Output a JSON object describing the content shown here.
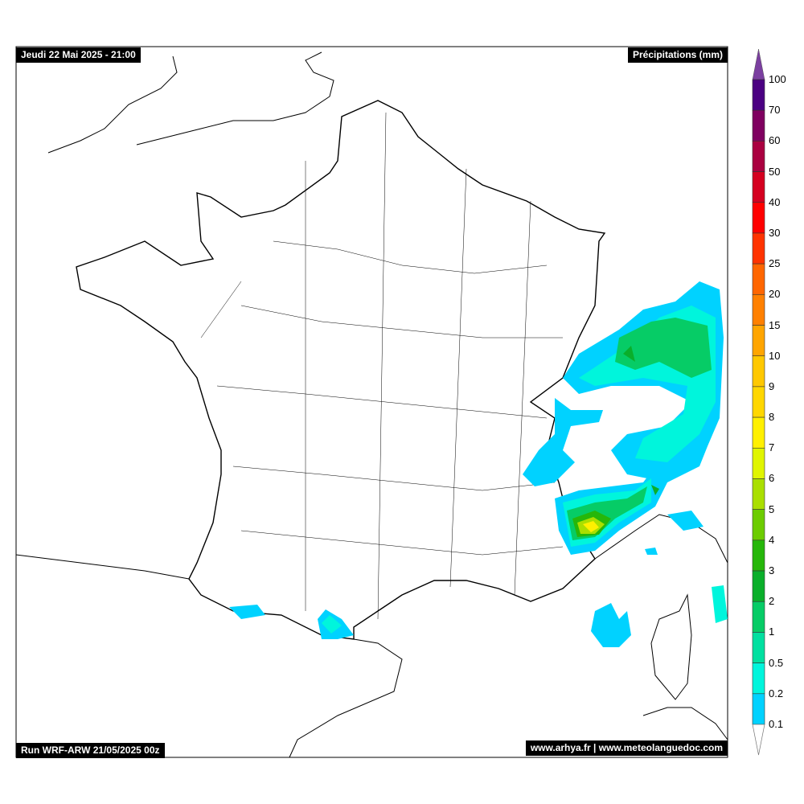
{
  "header": {
    "datetime": "Jeudi 22 Mai 2025 - 21:00",
    "variable": "Précipitations (mm)"
  },
  "footer": {
    "run": "Run WRF-ARW 21/05/2025 00z",
    "credits": "www.arhya.fr | www.meteolanguedoc.com"
  },
  "legend": {
    "levels": [
      "100",
      "70",
      "60",
      "50",
      "40",
      "30",
      "25",
      "20",
      "15",
      "10",
      "9",
      "8",
      "7",
      "6",
      "5",
      "4",
      "3",
      "2",
      "1",
      "0.5",
      "0.2",
      "0.1"
    ],
    "colors": [
      "#4B0082",
      "#7F0060",
      "#AA0040",
      "#D50020",
      "#FF0000",
      "#FF3300",
      "#FF6600",
      "#FF8000",
      "#FFA500",
      "#FFC800",
      "#FFD700",
      "#FFF000",
      "#E0F500",
      "#AADF00",
      "#6CCC00",
      "#26B70A",
      "#0AAF2A",
      "#06CC66",
      "#00E0A0",
      "#00F5DC",
      "#00D2FF"
    ],
    "over_color": "#7B3FA0",
    "under_color": "#FFFFFF"
  }
}
